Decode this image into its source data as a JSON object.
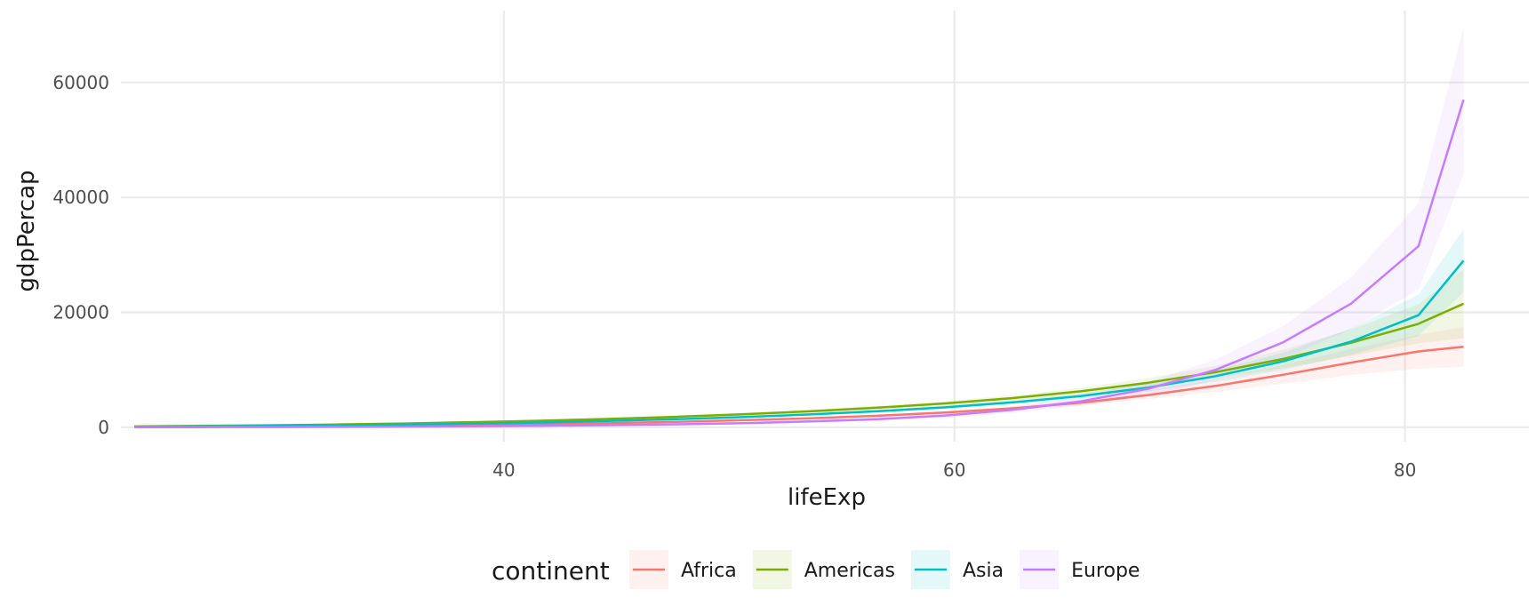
{
  "chart_data": {
    "type": "line",
    "xlabel": "lifeExp",
    "ylabel": "gdpPercap",
    "xlim": [
      23,
      85.5
    ],
    "ylim": [
      -2500,
      72500
    ],
    "x_ticks": [
      40,
      60,
      80
    ],
    "y_ticks": [
      0,
      20000,
      40000,
      60000
    ],
    "x_tick_labels": [
      "40",
      "60",
      "80"
    ],
    "y_tick_labels": [
      "0",
      "20000",
      "40000",
      "60000"
    ],
    "x_minor_ticks": [
      30,
      50,
      70
    ],
    "y_minor_ticks": [
      10000,
      30000,
      50000,
      70000
    ],
    "grid": true,
    "legend": {
      "title": "continent",
      "position": "bottom",
      "entries": [
        "Africa",
        "Americas",
        "Asia",
        "Europe"
      ]
    },
    "x": [
      23.6,
      26.6,
      29.6,
      32.6,
      35.6,
      38.6,
      41.6,
      44.6,
      47.6,
      50.6,
      53.6,
      56.6,
      59.6,
      62.6,
      65.6,
      68.6,
      71.6,
      74.6,
      77.6,
      80.6,
      82.6
    ],
    "series": [
      {
        "name": "Africa",
        "color": "#F8766D",
        "values": [
          60,
          90,
          140,
          200,
          290,
          400,
          540,
          720,
          940,
          1220,
          1560,
          2000,
          2560,
          3300,
          4280,
          5600,
          7200,
          9150,
          11250,
          13200,
          14000
        ],
        "lower": [
          40,
          70,
          110,
          160,
          240,
          340,
          470,
          640,
          850,
          1100,
          1410,
          1800,
          2300,
          2950,
          3800,
          4900,
          6150,
          7600,
          9100,
          10200,
          10500
        ],
        "upper": [
          90,
          120,
          180,
          250,
          350,
          470,
          620,
          810,
          1050,
          1350,
          1720,
          2200,
          2830,
          3680,
          4800,
          6350,
          8350,
          10850,
          13600,
          16100,
          17500
        ]
      },
      {
        "name": "Americas",
        "color": "#7CAE00",
        "values": [
          150,
          230,
          340,
          480,
          660,
          880,
          1140,
          1450,
          1820,
          2260,
          2780,
          3400,
          4150,
          5080,
          6250,
          7750,
          9600,
          11900,
          14700,
          18000,
          21500
        ],
        "lower": [
          100,
          170,
          270,
          390,
          550,
          750,
          990,
          1270,
          1600,
          2000,
          2480,
          3050,
          3750,
          4600,
          5650,
          6950,
          8500,
          10300,
          12400,
          14600,
          15500
        ],
        "upper": [
          210,
          300,
          420,
          580,
          780,
          1020,
          1300,
          1640,
          2050,
          2530,
          3090,
          3760,
          4560,
          5560,
          6850,
          8550,
          10700,
          13500,
          17000,
          21400,
          27500
        ]
      },
      {
        "name": "Asia",
        "color": "#00BFC4",
        "values": [
          100,
          160,
          240,
          340,
          470,
          630,
          830,
          1080,
          1390,
          1770,
          2230,
          2790,
          3470,
          4330,
          5430,
          6900,
          8900,
          11500,
          14900,
          19500,
          29000
        ],
        "lower": [
          60,
          110,
          180,
          270,
          390,
          540,
          730,
          960,
          1250,
          1600,
          2030,
          2540,
          3160,
          3940,
          4940,
          6220,
          7900,
          10000,
          12600,
          15900,
          23500
        ],
        "upper": [
          140,
          210,
          300,
          410,
          550,
          720,
          930,
          1200,
          1530,
          1940,
          2430,
          3040,
          3780,
          4720,
          5920,
          7580,
          9900,
          13000,
          17200,
          23100,
          34500
        ]
      },
      {
        "name": "Europe",
        "color": "#C77CFF",
        "values": [
          10,
          20,
          40,
          70,
          110,
          170,
          250,
          360,
          510,
          720,
          1010,
          1420,
          2050,
          3050,
          4500,
          6700,
          10000,
          14800,
          21500,
          31500,
          57000
        ],
        "lower": [
          0,
          0,
          0,
          10,
          40,
          80,
          140,
          220,
          340,
          510,
          760,
          1110,
          1650,
          2500,
          3700,
          5500,
          8200,
          12000,
          17000,
          24000,
          44000
        ],
        "upper": [
          50,
          70,
          100,
          140,
          190,
          260,
          360,
          500,
          690,
          940,
          1270,
          1730,
          2450,
          3600,
          5300,
          7900,
          11800,
          17600,
          26000,
          39000,
          69500
        ]
      }
    ]
  }
}
